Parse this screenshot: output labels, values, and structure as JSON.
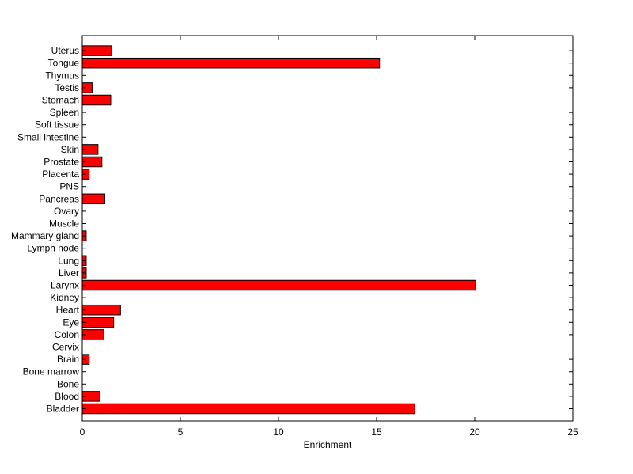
{
  "chart_data": {
    "type": "bar",
    "orientation": "horizontal",
    "title": "",
    "xlabel": "Enrichment",
    "ylabel": "",
    "xlim": [
      0,
      25
    ],
    "xticks": [
      0,
      5,
      10,
      15,
      20,
      25
    ],
    "grid": false,
    "legend": "none",
    "bar_color": "#ff0000",
    "bar_edge_color": "#000000",
    "categories": [
      "Bladder",
      "Blood",
      "Bone",
      "Bone marrow",
      "Brain",
      "Cervix",
      "Colon",
      "Eye",
      "Heart",
      "Kidney",
      "Larynx",
      "Liver",
      "Lung",
      "Lymph node",
      "Mammary gland",
      "Muscle",
      "Ovary",
      "Pancreas",
      "PNS",
      "Placenta",
      "Prostate",
      "Skin",
      "Small intestine",
      "Soft tissue",
      "Spleen",
      "Stomach",
      "Testis",
      "Thymus",
      "Tongue",
      "Uterus"
    ],
    "values": [
      16.95,
      0.9,
      0,
      0,
      0.35,
      0,
      1.1,
      1.6,
      1.95,
      0,
      20.05,
      0.2,
      0.2,
      0,
      0.2,
      0,
      0,
      1.15,
      0,
      0.35,
      1.0,
      0.8,
      0,
      0,
      0,
      1.45,
      0.5,
      0,
      15.15,
      1.5
    ]
  }
}
